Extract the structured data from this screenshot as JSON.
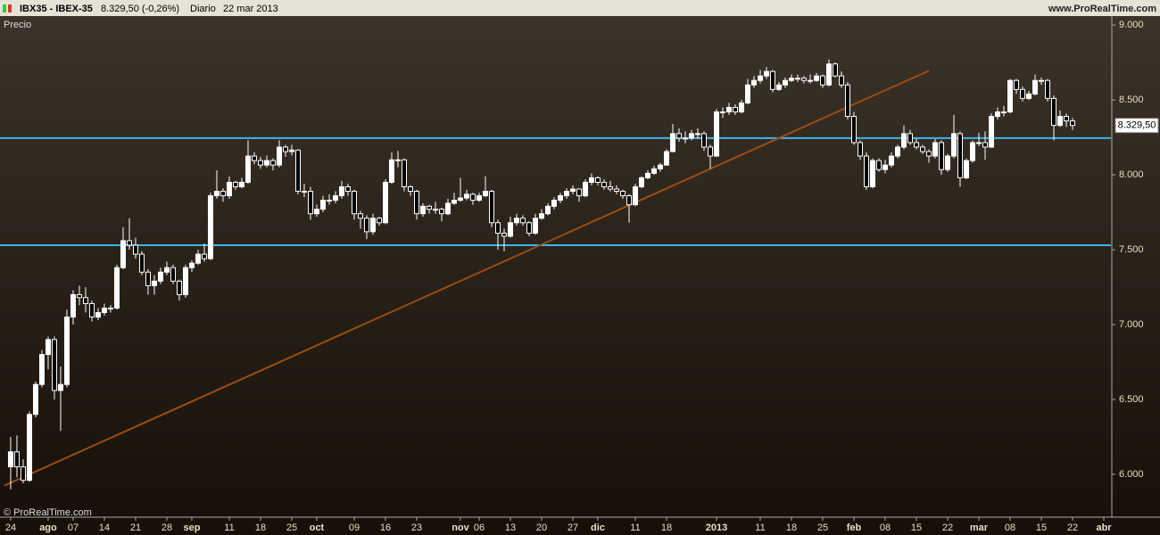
{
  "header": {
    "symbol": "IBX35 - IBEX-35",
    "quote": "8.329,50 (-0,26%)",
    "period": "Diario",
    "date": "22 mar 2013",
    "site": "www.ProRealTime.com"
  },
  "chart_data": {
    "type": "candlestick",
    "panel_label": "Precio",
    "watermark": "© ProRealTime.com",
    "up_color": "#ffffff",
    "down_color": "#000000",
    "hline_color": "#3bb6ea",
    "trend_color": "#9a4d12",
    "xlim": [
      -1.71,
      176.14
    ],
    "ylim": [
      5714,
      9060
    ],
    "yticks": [
      {
        "value": 6000,
        "label": "6.000"
      },
      {
        "value": 6500,
        "label": "6.500"
      },
      {
        "value": 7000,
        "label": "7.000"
      },
      {
        "value": 7500,
        "label": "7.500"
      },
      {
        "value": 8000,
        "label": "8.000"
      },
      {
        "value": 8500,
        "label": "8.500"
      },
      {
        "value": 9000,
        "label": "9.000"
      }
    ],
    "xticks": [
      {
        "value": 0,
        "label": "24"
      },
      {
        "value": 6,
        "label": "ago",
        "major": true
      },
      {
        "value": 10,
        "label": "07"
      },
      {
        "value": 15,
        "label": "14"
      },
      {
        "value": 20,
        "label": "21"
      },
      {
        "value": 25,
        "label": "28"
      },
      {
        "value": 29,
        "label": "sep",
        "major": true
      },
      {
        "value": 35,
        "label": "11"
      },
      {
        "value": 40,
        "label": "18"
      },
      {
        "value": 45,
        "label": "25"
      },
      {
        "value": 49,
        "label": "oct",
        "major": true
      },
      {
        "value": 55,
        "label": "09"
      },
      {
        "value": 60,
        "label": "16"
      },
      {
        "value": 65,
        "label": "23"
      },
      {
        "value": 72,
        "label": "nov",
        "major": true
      },
      {
        "value": 75,
        "label": "06"
      },
      {
        "value": 80,
        "label": "13"
      },
      {
        "value": 85,
        "label": "20"
      },
      {
        "value": 90,
        "label": "27"
      },
      {
        "value": 94,
        "label": "dic",
        "major": true
      },
      {
        "value": 100,
        "label": "11"
      },
      {
        "value": 105,
        "label": "18"
      },
      {
        "value": 113,
        "label": "2013",
        "major": true
      },
      {
        "value": 120,
        "label": "11"
      },
      {
        "value": 125,
        "label": "18"
      },
      {
        "value": 130,
        "label": "25"
      },
      {
        "value": 135,
        "label": "feb",
        "major": true
      },
      {
        "value": 140,
        "label": "08"
      },
      {
        "value": 145,
        "label": "15"
      },
      {
        "value": 150,
        "label": "22"
      },
      {
        "value": 155,
        "label": "mar",
        "major": true
      },
      {
        "value": 160,
        "label": "08"
      },
      {
        "value": 165,
        "label": "15"
      },
      {
        "value": 170,
        "label": "22"
      },
      {
        "value": 175,
        "label": "abr",
        "major": true
      }
    ],
    "last_price": {
      "value": 8329.5,
      "label": "8.329,50"
    },
    "hlines": [
      8245,
      7530
    ],
    "trendline": {
      "x": [
        -1,
        147
      ],
      "y": [
        5925,
        8695
      ]
    },
    "ohlc": [
      [
        6050,
        6250,
        5900,
        6150
      ],
      [
        6150,
        6260,
        5980,
        6050
      ],
      [
        6050,
        6100,
        5940,
        5960
      ],
      [
        5960,
        6420,
        5950,
        6400
      ],
      [
        6400,
        6620,
        6380,
        6600
      ],
      [
        6600,
        6830,
        6580,
        6800
      ],
      [
        6800,
        6920,
        6700,
        6900
      ],
      [
        6900,
        6920,
        6500,
        6560
      ],
      [
        6560,
        6720,
        6290,
        6600
      ],
      [
        6600,
        7100,
        6580,
        7050
      ],
      [
        7050,
        7230,
        7000,
        7200
      ],
      [
        7200,
        7260,
        7130,
        7180
      ],
      [
        7180,
        7250,
        7080,
        7140
      ],
      [
        7140,
        7160,
        7020,
        7050
      ],
      [
        7050,
        7110,
        7030,
        7080
      ],
      [
        7080,
        7140,
        7060,
        7110
      ],
      [
        7110,
        7130,
        7080,
        7110
      ],
      [
        7110,
        7400,
        7100,
        7380
      ],
      [
        7380,
        7650,
        7370,
        7560
      ],
      [
        7560,
        7710,
        7500,
        7530
      ],
      [
        7530,
        7580,
        7440,
        7470
      ],
      [
        7470,
        7490,
        7330,
        7350
      ],
      [
        7350,
        7370,
        7200,
        7260
      ],
      [
        7260,
        7330,
        7200,
        7290
      ],
      [
        7290,
        7380,
        7270,
        7350
      ],
      [
        7350,
        7420,
        7330,
        7380
      ],
      [
        7380,
        7400,
        7270,
        7290
      ],
      [
        7290,
        7300,
        7160,
        7200
      ],
      [
        7200,
        7400,
        7180,
        7380
      ],
      [
        7380,
        7430,
        7350,
        7410
      ],
      [
        7410,
        7500,
        7400,
        7470
      ],
      [
        7470,
        7540,
        7420,
        7440
      ],
      [
        7440,
        7880,
        7430,
        7860
      ],
      [
        7860,
        8030,
        7840,
        7890
      ],
      [
        7890,
        7910,
        7820,
        7860
      ],
      [
        7860,
        7990,
        7840,
        7950
      ],
      [
        7950,
        7960,
        7900,
        7920
      ],
      [
        7920,
        7980,
        7910,
        7950
      ],
      [
        7950,
        8230,
        7940,
        8125
      ],
      [
        8125,
        8150,
        8070,
        8095
      ],
      [
        8095,
        8120,
        8040,
        8065
      ],
      [
        8065,
        8130,
        8050,
        8095
      ],
      [
        8095,
        8110,
        8030,
        8065
      ],
      [
        8065,
        8230,
        8050,
        8185
      ],
      [
        8185,
        8200,
        8120,
        8155
      ],
      [
        8155,
        8200,
        8130,
        8165
      ],
      [
        8165,
        8170,
        7870,
        7890
      ],
      [
        7890,
        7940,
        7850,
        7890
      ],
      [
        7890,
        7920,
        7700,
        7740
      ],
      [
        7740,
        7800,
        7720,
        7770
      ],
      [
        7770,
        7860,
        7750,
        7830
      ],
      [
        7830,
        7870,
        7800,
        7830
      ],
      [
        7830,
        7890,
        7810,
        7860
      ],
      [
        7860,
        7960,
        7840,
        7920
      ],
      [
        7920,
        7940,
        7860,
        7890
      ],
      [
        7890,
        7900,
        7700,
        7740
      ],
      [
        7740,
        7760,
        7640,
        7710
      ],
      [
        7710,
        7730,
        7570,
        7620
      ],
      [
        7620,
        7740,
        7600,
        7710
      ],
      [
        7710,
        7720,
        7660,
        7680
      ],
      [
        7680,
        7970,
        7670,
        7950
      ],
      [
        7950,
        8150,
        7940,
        8100
      ],
      [
        8100,
        8160,
        8050,
        8100
      ],
      [
        8100,
        8110,
        7890,
        7920
      ],
      [
        7920,
        7930,
        7860,
        7890
      ],
      [
        7890,
        7900,
        7700,
        7740
      ],
      [
        7740,
        7810,
        7720,
        7790
      ],
      [
        7790,
        7800,
        7740,
        7770
      ],
      [
        7770,
        7820,
        7740,
        7770
      ],
      [
        7770,
        7780,
        7690,
        7740
      ],
      [
        7740,
        7840,
        7730,
        7810
      ],
      [
        7810,
        7880,
        7800,
        7830
      ],
      [
        7830,
        7980,
        7820,
        7845
      ],
      [
        7845,
        7900,
        7830,
        7870
      ],
      [
        7870,
        7880,
        7800,
        7830
      ],
      [
        7830,
        7880,
        7820,
        7860
      ],
      [
        7860,
        7990,
        7850,
        7890
      ],
      [
        7890,
        7900,
        7650,
        7680
      ],
      [
        7680,
        7700,
        7500,
        7610
      ],
      [
        7610,
        7640,
        7490,
        7590
      ],
      [
        7590,
        7720,
        7580,
        7680
      ],
      [
        7680,
        7740,
        7660,
        7710
      ],
      [
        7710,
        7730,
        7660,
        7680
      ],
      [
        7680,
        7690,
        7590,
        7610
      ],
      [
        7610,
        7740,
        7600,
        7710
      ],
      [
        7710,
        7770,
        7700,
        7740
      ],
      [
        7740,
        7810,
        7730,
        7790
      ],
      [
        7790,
        7850,
        7770,
        7830
      ],
      [
        7830,
        7880,
        7810,
        7860
      ],
      [
        7860,
        7910,
        7840,
        7890
      ],
      [
        7890,
        7930,
        7870,
        7905
      ],
      [
        7905,
        7910,
        7820,
        7860
      ],
      [
        7860,
        7970,
        7850,
        7950
      ],
      [
        7950,
        8010,
        7930,
        7980
      ],
      [
        7980,
        7990,
        7930,
        7950
      ],
      [
        7950,
        7970,
        7900,
        7920
      ],
      [
        7920,
        7960,
        7890,
        7905
      ],
      [
        7905,
        7930,
        7870,
        7890
      ],
      [
        7890,
        7900,
        7840,
        7860
      ],
      [
        7860,
        7870,
        7680,
        7800
      ],
      [
        7800,
        7940,
        7790,
        7920
      ],
      [
        7920,
        7990,
        7910,
        7980
      ],
      [
        7980,
        8030,
        7970,
        8010
      ],
      [
        8010,
        8060,
        8000,
        8040
      ],
      [
        8040,
        8080,
        8020,
        8065
      ],
      [
        8065,
        8170,
        8060,
        8155
      ],
      [
        8155,
        8340,
        8150,
        8275
      ],
      [
        8275,
        8310,
        8220,
        8245
      ],
      [
        8245,
        8290,
        8210,
        8245
      ],
      [
        8245,
        8300,
        8230,
        8275
      ],
      [
        8275,
        8310,
        8240,
        8275
      ],
      [
        8275,
        8290,
        8160,
        8185
      ],
      [
        8185,
        8200,
        8040,
        8125
      ],
      [
        8125,
        8440,
        8120,
        8420
      ],
      [
        8420,
        8450,
        8380,
        8420
      ],
      [
        8420,
        8480,
        8400,
        8450
      ],
      [
        8450,
        8470,
        8400,
        8420
      ],
      [
        8420,
        8500,
        8410,
        8480
      ],
      [
        8480,
        8640,
        8470,
        8600
      ],
      [
        8600,
        8660,
        8580,
        8630
      ],
      [
        8630,
        8700,
        8610,
        8660
      ],
      [
        8660,
        8720,
        8640,
        8690
      ],
      [
        8690,
        8700,
        8550,
        8570
      ],
      [
        8570,
        8620,
        8560,
        8600
      ],
      [
        8600,
        8650,
        8580,
        8630
      ],
      [
        8630,
        8670,
        8620,
        8645
      ],
      [
        8645,
        8670,
        8620,
        8645
      ],
      [
        8645,
        8660,
        8610,
        8630
      ],
      [
        8630,
        8670,
        8610,
        8630
      ],
      [
        8630,
        8680,
        8620,
        8660
      ],
      [
        8660,
        8670,
        8580,
        8600
      ],
      [
        8600,
        8770,
        8590,
        8740
      ],
      [
        8740,
        8750,
        8650,
        8660
      ],
      [
        8660,
        8690,
        8580,
        8600
      ],
      [
        8600,
        8620,
        8370,
        8390
      ],
      [
        8390,
        8420,
        8200,
        8215
      ],
      [
        8215,
        8230,
        8100,
        8125
      ],
      [
        8125,
        8150,
        7900,
        7920
      ],
      [
        7920,
        8110,
        7910,
        8095
      ],
      [
        8095,
        8110,
        8020,
        8035
      ],
      [
        8035,
        8100,
        8010,
        8065
      ],
      [
        8065,
        8150,
        8050,
        8125
      ],
      [
        8125,
        8200,
        8110,
        8185
      ],
      [
        8185,
        8330,
        8170,
        8275
      ],
      [
        8275,
        8300,
        8200,
        8215
      ],
      [
        8215,
        8240,
        8170,
        8185
      ],
      [
        8185,
        8200,
        8140,
        8155
      ],
      [
        8155,
        8170,
        8080,
        8125
      ],
      [
        8125,
        8240,
        8110,
        8215
      ],
      [
        8215,
        8230,
        8000,
        8035
      ],
      [
        8035,
        8140,
        8020,
        8125
      ],
      [
        8125,
        8400,
        8110,
        8275
      ],
      [
        8275,
        8290,
        7920,
        7980
      ],
      [
        7980,
        8110,
        7970,
        8095
      ],
      [
        8095,
        8230,
        8080,
        8215
      ],
      [
        8215,
        8280,
        8190,
        8215
      ],
      [
        8215,
        8290,
        8100,
        8185
      ],
      [
        8185,
        8410,
        8180,
        8390
      ],
      [
        8390,
        8450,
        8370,
        8420
      ],
      [
        8420,
        8460,
        8390,
        8420
      ],
      [
        8420,
        8640,
        8410,
        8630
      ],
      [
        8630,
        8640,
        8540,
        8570
      ],
      [
        8570,
        8590,
        8490,
        8510
      ],
      [
        8510,
        8560,
        8500,
        8540
      ],
      [
        8540,
        8670,
        8530,
        8630
      ],
      [
        8630,
        8650,
        8600,
        8630
      ],
      [
        8630,
        8640,
        8490,
        8510
      ],
      [
        8510,
        8530,
        8230,
        8330
      ],
      [
        8330,
        8430,
        8320,
        8390
      ],
      [
        8390,
        8410,
        8320,
        8360
      ],
      [
        8360,
        8380,
        8300,
        8329.5
      ]
    ]
  }
}
